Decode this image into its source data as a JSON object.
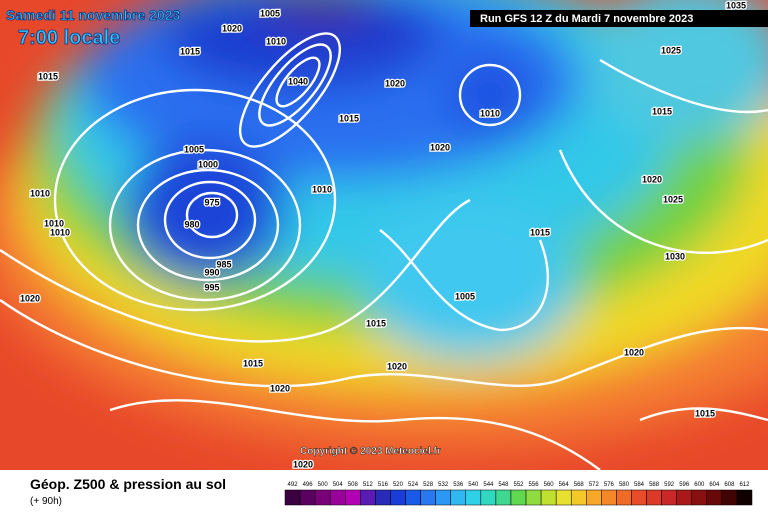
{
  "header": {
    "date": "Samedi 11 novembre 2023",
    "time": "7:00 locale",
    "run": "Run GFS 12 Z du Mardi 7 novembre 2023"
  },
  "copyright": "Copyright © 2023 Meteociel.fr",
  "footer": {
    "title": "Géop. Z500 & pression au sol",
    "lead": "(+ 90h)"
  },
  "isobar_labels": [
    1005,
    1020,
    1010,
    1015,
    1015,
    1040,
    1020,
    1010,
    1025,
    1035,
    1015,
    1015,
    1005,
    1000,
    1020,
    1020,
    1010,
    1010,
    1025,
    975,
    980,
    1010,
    1010,
    1015,
    1030,
    985,
    990,
    995,
    1020,
    1005,
    1015,
    1020,
    1015,
    1020,
    1020,
    1015,
    1020
  ],
  "scale": {
    "labels": [
      492,
      496,
      500,
      504,
      508,
      512,
      516,
      520,
      524,
      528,
      532,
      536,
      540,
      544,
      548,
      552,
      556,
      560,
      564,
      568,
      572,
      576,
      580,
      584,
      588,
      592,
      596,
      600,
      604,
      608,
      612
    ],
    "colors": [
      "#3a0040",
      "#5a0060",
      "#7a007a",
      "#9a009a",
      "#b400b4",
      "#5a1ab4",
      "#2a2ab8",
      "#1a3cd8",
      "#1a5ae8",
      "#2a78f0",
      "#2a98f4",
      "#30b8f0",
      "#30d0e8",
      "#30d8c0",
      "#40d890",
      "#60d850",
      "#90dc40",
      "#c0e030",
      "#e8e030",
      "#f4c828",
      "#f8a828",
      "#f48828",
      "#f06a28",
      "#e84c28",
      "#dc3a28",
      "#c82828",
      "#a81a1a",
      "#881010",
      "#680808",
      "#400404",
      "#100000"
    ]
  }
}
